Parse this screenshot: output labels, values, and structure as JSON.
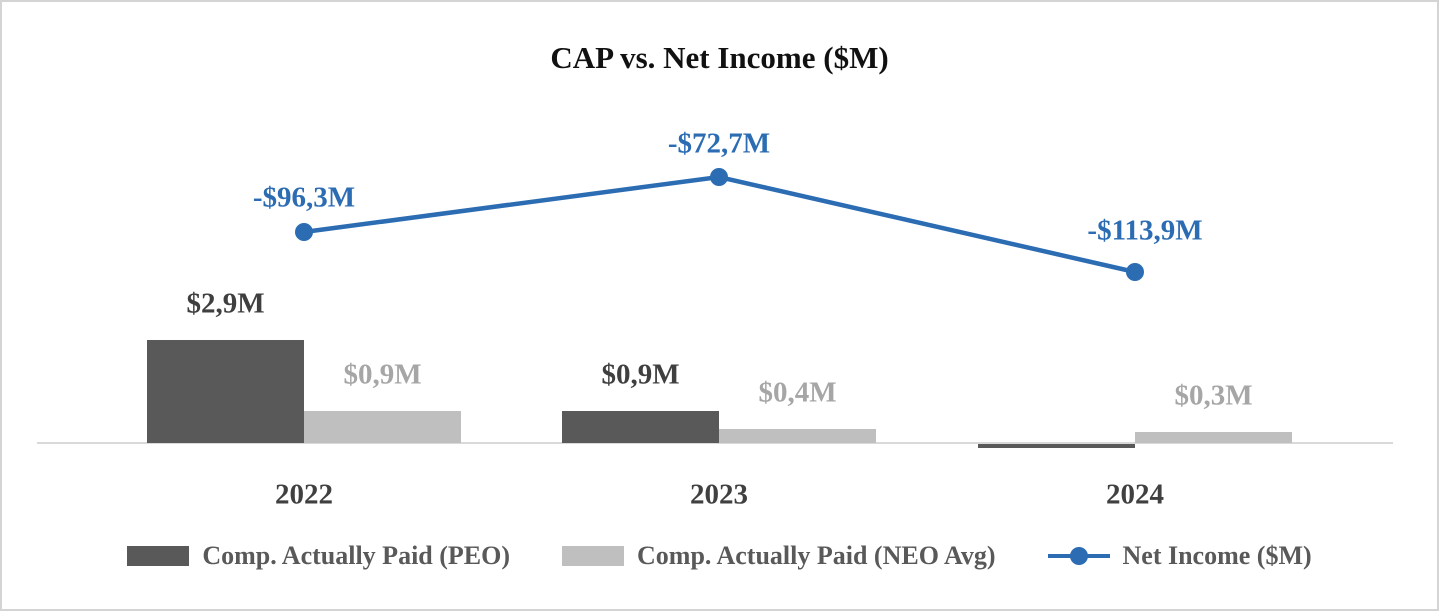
{
  "chart_data": {
    "type": "bar",
    "subtype": "bar-line-combo",
    "title": "CAP vs. Net Income ($M)",
    "categories": [
      "2022",
      "2023",
      "2024"
    ],
    "series": [
      {
        "name": "Comp. Actually Paid (PEO)",
        "type": "bar",
        "color": "#595959",
        "label_color": "#3f3f3f",
        "values": [
          2.9,
          0.9,
          -0.1
        ],
        "labels": [
          "$2,9M",
          "$0,9M",
          ""
        ]
      },
      {
        "name": "Comp. Actually Paid (NEO Avg)",
        "type": "bar",
        "color": "#bfbfbf",
        "label_color": "#a6a6a6",
        "values": [
          0.9,
          0.4,
          0.3
        ],
        "labels": [
          "$0,9M",
          "$0,4M",
          "$0,3M"
        ]
      },
      {
        "name": "Net Income ($M)",
        "type": "line",
        "color": "#2b6cb3",
        "label_color": "#2b6cb3",
        "values": [
          -96.3,
          -72.7,
          -113.9
        ],
        "labels": [
          "-$96,3M",
          "-$72,7M",
          "-$113,9M"
        ]
      }
    ],
    "legend_position": "bottom",
    "grid": false,
    "axis_color": "#d9d9d9"
  }
}
